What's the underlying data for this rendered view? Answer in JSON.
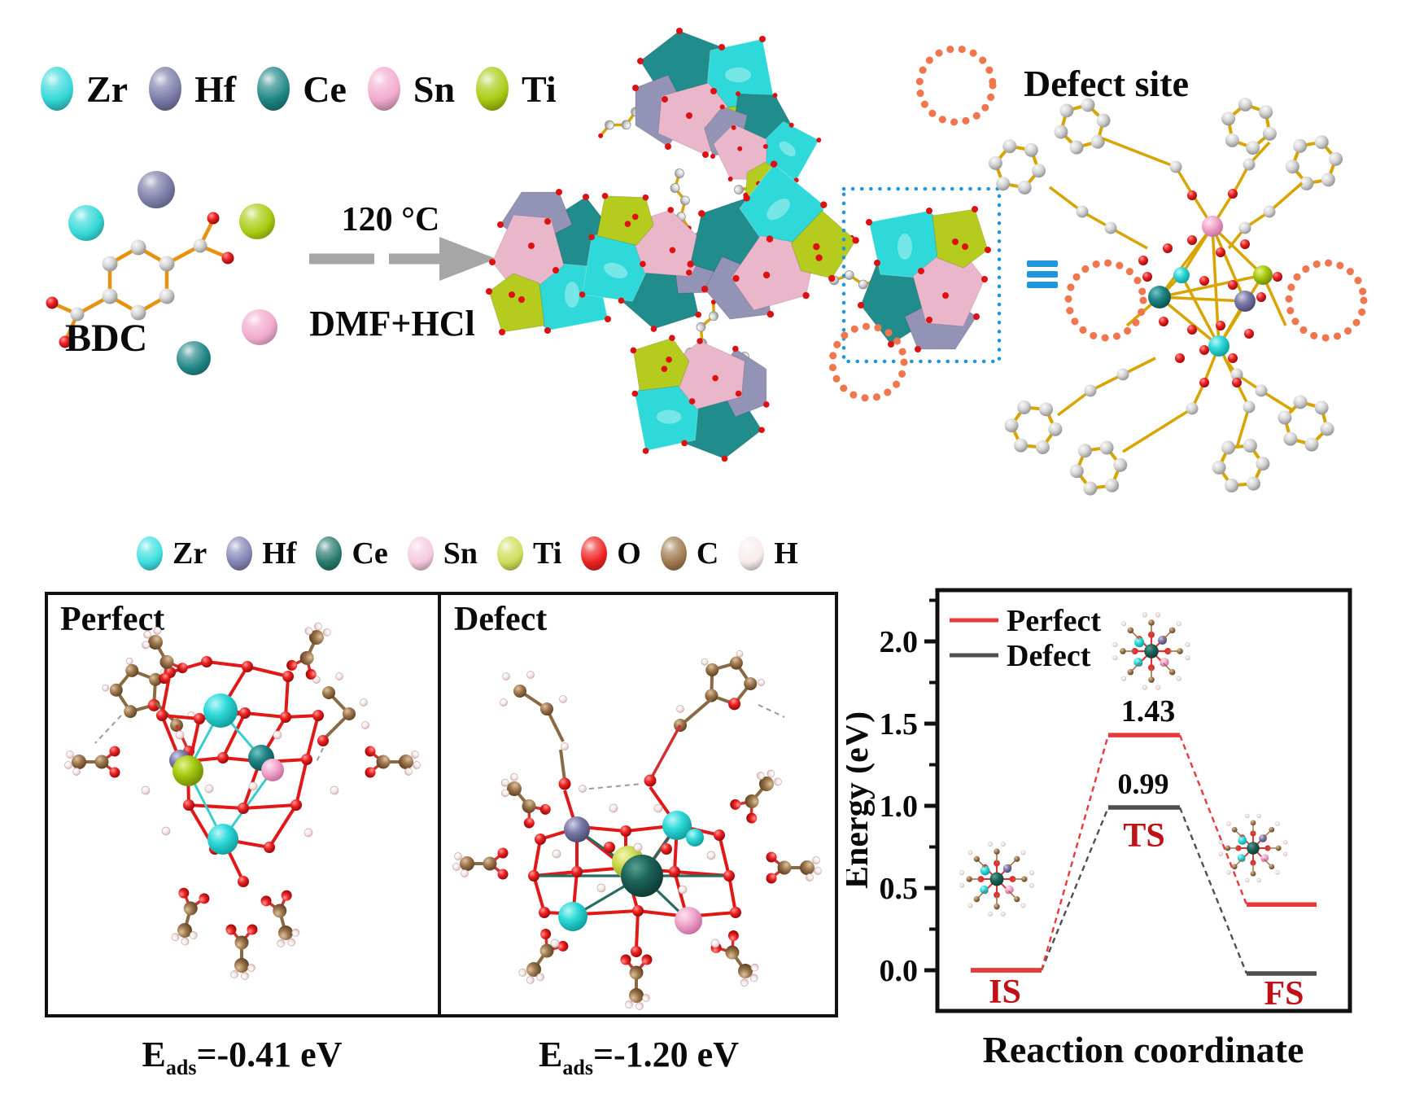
{
  "scheme": {
    "legend": {
      "items": [
        {
          "label": "Zr",
          "color": "#35d8d8"
        },
        {
          "label": "Hf",
          "color": "#7b7ba8"
        },
        {
          "label": "Ce",
          "color": "#1f8585"
        },
        {
          "label": "Sn",
          "color": "#f2abce"
        },
        {
          "label": "Ti",
          "color": "#a8cc12"
        }
      ]
    },
    "bdc_label": "BDC",
    "temperature": "120 °C",
    "solvent": "DMF+HCl",
    "defect_site_label": "Defect site",
    "defect_circle_color": "#f0764e",
    "selection_box_color": "#1e96dc"
  },
  "legend_bottom": {
    "items": [
      {
        "label": "Zr",
        "color": "#3fe0e0"
      },
      {
        "label": "Hf",
        "color": "#8585b5"
      },
      {
        "label": "Ce",
        "color": "#2a7a6e"
      },
      {
        "label": "Sn",
        "color": "#f6cadf"
      },
      {
        "label": "Ti",
        "color": "#cede5a"
      },
      {
        "label": "O",
        "color": "#ee2222"
      },
      {
        "label": "C",
        "color": "#a07a50"
      },
      {
        "label": "H",
        "color": "#f7ecec"
      }
    ]
  },
  "panels": {
    "perfect": {
      "title": "Perfect",
      "eads_symbol": "E",
      "eads_subscript": "ads",
      "eads_value": "=-0.41 eV"
    },
    "defect": {
      "title": "Defect",
      "eads_symbol": "E",
      "eads_subscript": "ads",
      "eads_value": "=-1.20 eV"
    }
  },
  "chart_data": {
    "type": "line",
    "title": "",
    "xlabel": "Reaction coordinate",
    "ylabel": "Energy (eV)",
    "ylim": [
      -0.25,
      2.3
    ],
    "yticks": [
      0.0,
      0.5,
      1.0,
      1.5,
      2.0
    ],
    "ytick_labels": [
      "0.0",
      "0.5",
      "1.0",
      "1.5",
      "2.0"
    ],
    "grid": false,
    "legend_position": "top-left",
    "x_states": [
      "IS",
      "TS",
      "FS"
    ],
    "series": [
      {
        "name": "Perfect",
        "color": "#e83a3c",
        "values": [
          0.0,
          1.43,
          0.4
        ]
      },
      {
        "name": "Defect",
        "color": "#4f4f51",
        "values": [
          0.0,
          0.99,
          -0.02
        ]
      }
    ],
    "annotations": {
      "perfect_barrier": "1.43",
      "defect_barrier": "0.99"
    },
    "state_label_color": "#c01018"
  }
}
